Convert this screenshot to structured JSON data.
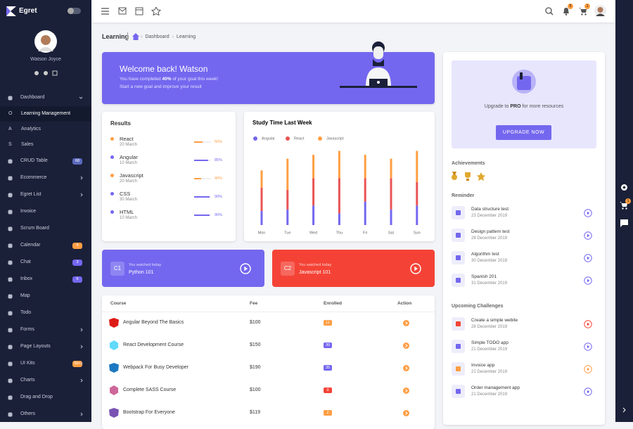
{
  "sidebar": {
    "brand": "Egret",
    "user": "Watson Joyce",
    "menu": [
      {
        "label": "Dashboard"
      },
      {
        "label": "Learning Management",
        "prefix": "O"
      },
      {
        "label": "Analytics",
        "prefix": "A"
      },
      {
        "label": "Sales",
        "prefix": "S"
      },
      {
        "label": "CRUD Table",
        "badge": "68",
        "badge_color": "#5c6bc0"
      },
      {
        "label": "Ecommerce"
      },
      {
        "label": "Egret List"
      },
      {
        "label": "Invoice"
      },
      {
        "label": "Scrum Board"
      },
      {
        "label": "Calendar",
        "badge": "4",
        "badge_color": "#ff9e43"
      },
      {
        "label": "Chat",
        "badge": "3",
        "badge_color": "#7467ef"
      },
      {
        "label": "Inbox",
        "badge": "6",
        "badge_color": "#7467ef"
      },
      {
        "label": "Map"
      },
      {
        "label": "Todo"
      },
      {
        "label": "Forms"
      },
      {
        "label": "Page Layouts"
      },
      {
        "label": "UI Kits",
        "badge": "50+",
        "badge_color": "#ff9e43"
      },
      {
        "label": "Charts"
      },
      {
        "label": "Drag and Drop"
      },
      {
        "label": "Others"
      }
    ]
  },
  "topbar": {
    "notifications": "5",
    "cart": "1"
  },
  "rightbar": {
    "cart": "1"
  },
  "breadcrumb": {
    "title": "Learning",
    "items": [
      "Dashboard",
      "Learning"
    ]
  },
  "welcome": {
    "title": "Welcome back! Watson",
    "line1_start": "You have completed",
    "highlight": "40%",
    "line1_end": "of your goal this week!",
    "line2": "Start a new goal and improve your result"
  },
  "results": {
    "title": "Results",
    "items": [
      {
        "name": "React",
        "date": "20 March",
        "value": 50,
        "value_label": "50%",
        "color": "#ff9e43"
      },
      {
        "name": "Angular",
        "date": "10 March",
        "value": 85,
        "value_label": "85%",
        "color": "#7467ef"
      },
      {
        "name": "Javascript",
        "date": "20 March",
        "value": 40,
        "value_label": "40%",
        "color": "#ff9e43"
      },
      {
        "name": "CSS",
        "date": "30 March",
        "value": 90,
        "value_label": "90%",
        "color": "#7467ef"
      },
      {
        "name": "HTML",
        "date": "10 March",
        "value": 90,
        "value_label": "90%",
        "color": "#7467ef"
      }
    ]
  },
  "study_time": {
    "type": "bar",
    "stacked": true,
    "title": "Study Time Last Week",
    "categories": [
      "Mon",
      "Tue",
      "Wed",
      "Thu",
      "Fri",
      "Sat",
      "Sun"
    ],
    "series": [
      {
        "name": "Angular",
        "color": "#7467ef",
        "values": [
          18,
          20,
          25,
          15,
          30,
          20,
          25
        ]
      },
      {
        "name": "React",
        "color": "#e95455",
        "values": [
          30,
          25,
          35,
          45,
          30,
          40,
          30
        ]
      },
      {
        "name": "Javascript",
        "color": "#ff9e43",
        "values": [
          22,
          40,
          30,
          35,
          30,
          25,
          40
        ]
      }
    ],
    "ylim": [
      0,
      100
    ]
  },
  "watched": [
    {
      "code": "C1",
      "caption": "You watched today",
      "course": "Python 101",
      "color": "#7467ef"
    },
    {
      "code": "C2",
      "caption": "You watched today",
      "course": "Javascript 101",
      "color": "#f44336"
    }
  ],
  "table": {
    "headers": [
      "Course",
      "Fee",
      "Enrolled",
      "Action"
    ],
    "rows": [
      {
        "course": "Angular Beyond The Basics",
        "fee": "$100",
        "enrolled": 11,
        "badge_color": "#ff9e43"
      },
      {
        "course": "React Development Course",
        "fee": "$150",
        "enrolled": 30,
        "badge_color": "#7467ef"
      },
      {
        "course": "Webpack For Busy Developer",
        "fee": "$190",
        "enrolled": 35,
        "badge_color": "#7467ef"
      },
      {
        "course": "Complete SASS Course",
        "fee": "$100",
        "enrolled": 0,
        "badge_color": "#f44336"
      },
      {
        "course": "Bootstrap For Everyone",
        "fee": "$119",
        "enrolled": 2,
        "badge_color": "#ff9e43"
      }
    ]
  },
  "upgrade": {
    "text_start": "Upgrade to",
    "pro": "PRO",
    "text_end": "for more resources",
    "button": "UPGRADE NOW"
  },
  "achievements": {
    "title": "Achievements"
  },
  "reminder": {
    "title": "Reminder",
    "items": [
      {
        "title": "Data structure test",
        "date": "23 December 2019"
      },
      {
        "title": "Design pattern test",
        "date": "28 December 2019"
      },
      {
        "title": "Algorithm test",
        "date": "30 December 2019"
      },
      {
        "title": "Spanish 201",
        "date": "31 December 2019"
      }
    ]
  },
  "challenges": {
    "title": "Upcoming Challenges",
    "items": [
      {
        "title": "Create a simple webite",
        "date": "28 December 2019",
        "color": "#f44336"
      },
      {
        "title": "Simple TODO app",
        "date": "21 December 2019",
        "color": "#7467ef"
      },
      {
        "title": "Invoice app",
        "date": "21 December 2019",
        "color": "#ff9e43"
      },
      {
        "title": "Order management app",
        "date": "21 December 2019",
        "color": "#7467ef"
      }
    ]
  }
}
